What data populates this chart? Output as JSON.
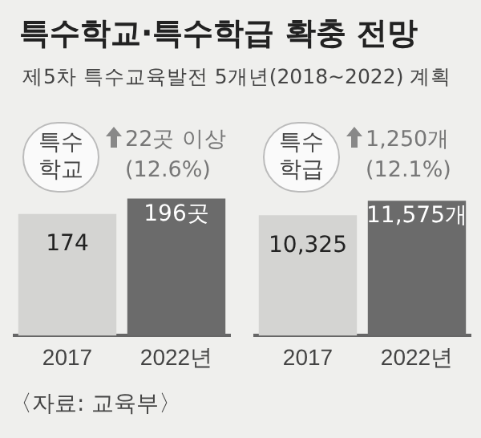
{
  "chart_data": [
    {
      "type": "bar",
      "title": "특수학교·특수학급 확충 전망",
      "subtitle": "제5차 특수교육발전 5개년(2018~2022) 계획",
      "categories": [
        "2017",
        "2022년"
      ],
      "values": [
        174,
        196
      ],
      "colors": [
        "#d4d4d2",
        "#6b6b6b"
      ],
      "value_labels": [
        "174",
        "196곳"
      ],
      "annotations": [
        "특수학교",
        "22곳 이상",
        "(12.6%)",
        "〈자료: 교육부〉"
      ],
      "tick_labels": "x",
      "grid": false,
      "legend": false
    },
    {
      "type": "bar",
      "categories": [
        "2017",
        "2022년"
      ],
      "values": [
        10325,
        11575
      ],
      "colors": [
        "#d4d4d2",
        "#6b6b6b"
      ],
      "value_labels": [
        "10,325",
        "11,575개"
      ],
      "annotations": [
        "특수학급",
        "1,250개",
        "(12.1%)"
      ],
      "tick_labels": "x",
      "grid": false,
      "legend": false
    }
  ]
}
